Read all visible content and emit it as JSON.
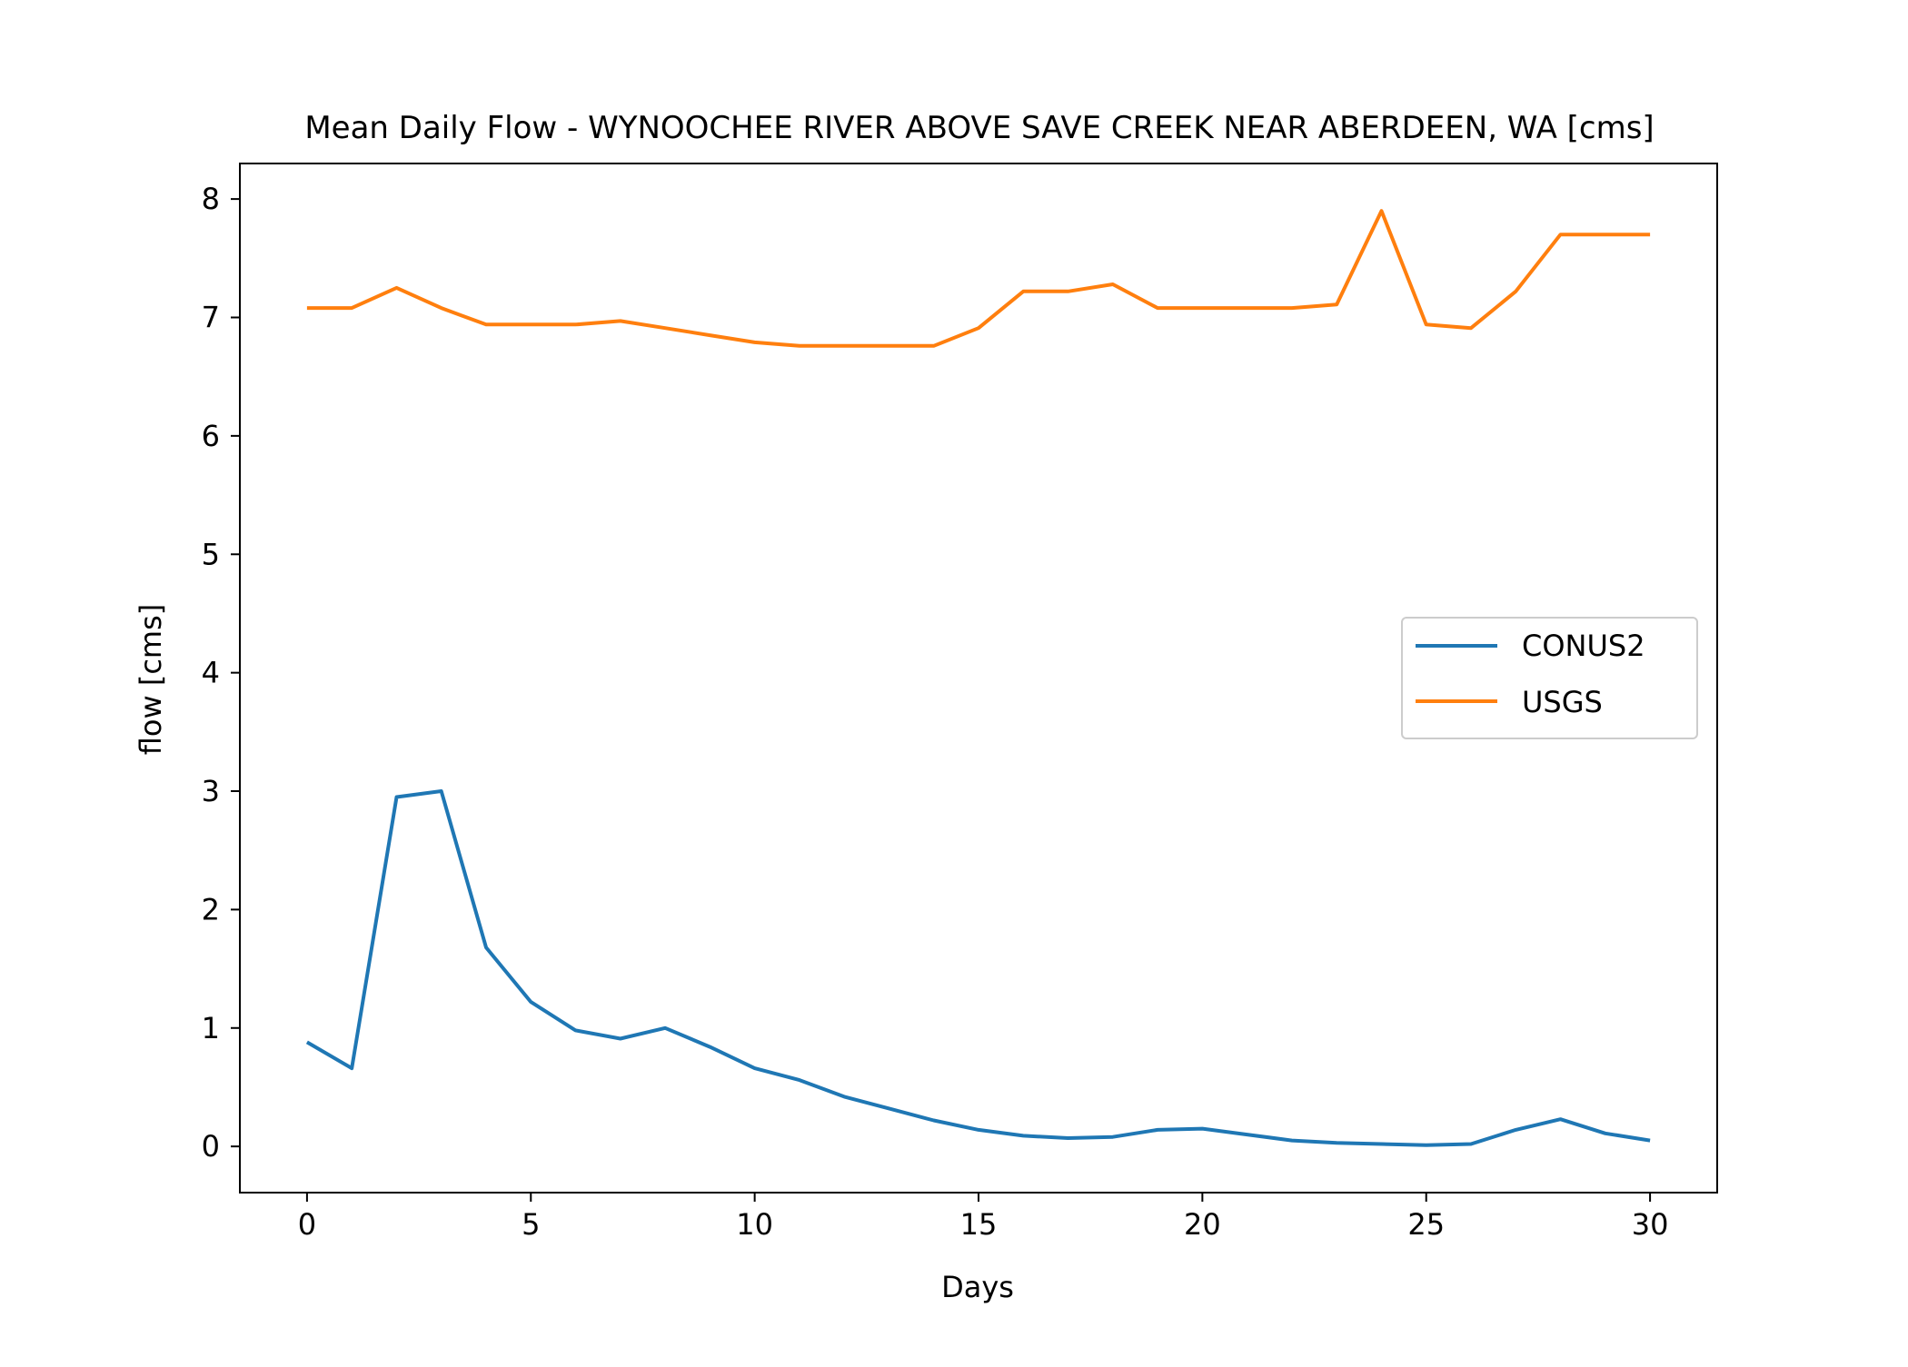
{
  "chart_data": {
    "type": "line",
    "title": "Mean Daily Flow - WYNOOCHEE RIVER ABOVE SAVE CREEK NEAR ABERDEEN, WA [cms]",
    "xlabel": "Days",
    "ylabel": "flow [cms]",
    "xlim": [
      -1.5,
      31.5
    ],
    "ylim": [
      -0.39,
      8.3
    ],
    "xticks": [
      0,
      5,
      10,
      15,
      20,
      25,
      30
    ],
    "yticks": [
      0,
      1,
      2,
      3,
      4,
      5,
      6,
      7,
      8
    ],
    "grid": false,
    "legend_position": "center-right",
    "x": [
      0,
      1,
      2,
      3,
      4,
      5,
      6,
      7,
      8,
      9,
      10,
      11,
      12,
      13,
      14,
      15,
      16,
      17,
      18,
      19,
      20,
      21,
      22,
      23,
      24,
      25,
      26,
      27,
      28,
      29,
      30
    ],
    "series": [
      {
        "name": "CONUS2",
        "color": "#1f77b4",
        "values": [
          0.88,
          0.66,
          2.95,
          3.0,
          1.68,
          1.22,
          0.98,
          0.91,
          1.0,
          0.84,
          0.66,
          0.56,
          0.42,
          0.32,
          0.22,
          0.14,
          0.09,
          0.07,
          0.08,
          0.14,
          0.15,
          0.1,
          0.05,
          0.03,
          0.02,
          0.01,
          0.02,
          0.14,
          0.23,
          0.11,
          0.05
        ]
      },
      {
        "name": "USGS",
        "color": "#ff7f0e",
        "values": [
          7.08,
          7.08,
          7.25,
          7.08,
          6.94,
          6.94,
          6.94,
          6.97,
          6.91,
          6.85,
          6.79,
          6.76,
          6.76,
          6.76,
          6.76,
          6.91,
          7.22,
          7.22,
          7.28,
          7.08,
          7.08,
          7.08,
          7.08,
          7.11,
          7.9,
          6.94,
          6.91,
          7.22,
          7.7,
          7.7,
          7.7
        ]
      }
    ]
  }
}
